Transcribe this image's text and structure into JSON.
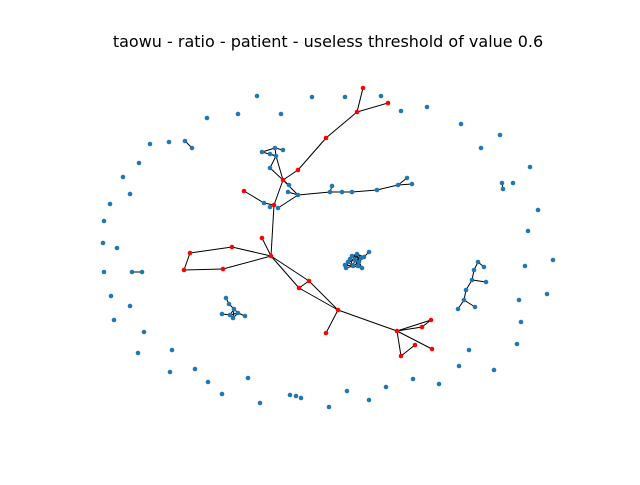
{
  "figure": {
    "title": "taowu - ratio - patient - useless threshold of value 0.6"
  },
  "colors": {
    "blue_node": "#1f77b4",
    "red_node": "#ff0000",
    "edge": "#000000"
  },
  "graph": {
    "node_count": 183,
    "components": [
      {
        "id": "main-tree",
        "note": "large tree component with red and blue nodes"
      },
      {
        "id": "cluster-center",
        "note": "dense blue cluster near center"
      },
      {
        "id": "cluster-left",
        "note": "small blue cluster lower-left"
      },
      {
        "id": "cluster-right",
        "note": "blue tree on right"
      },
      {
        "id": "isolated-ring",
        "note": "isolated blue nodes arranged in a ring"
      }
    ]
  }
}
